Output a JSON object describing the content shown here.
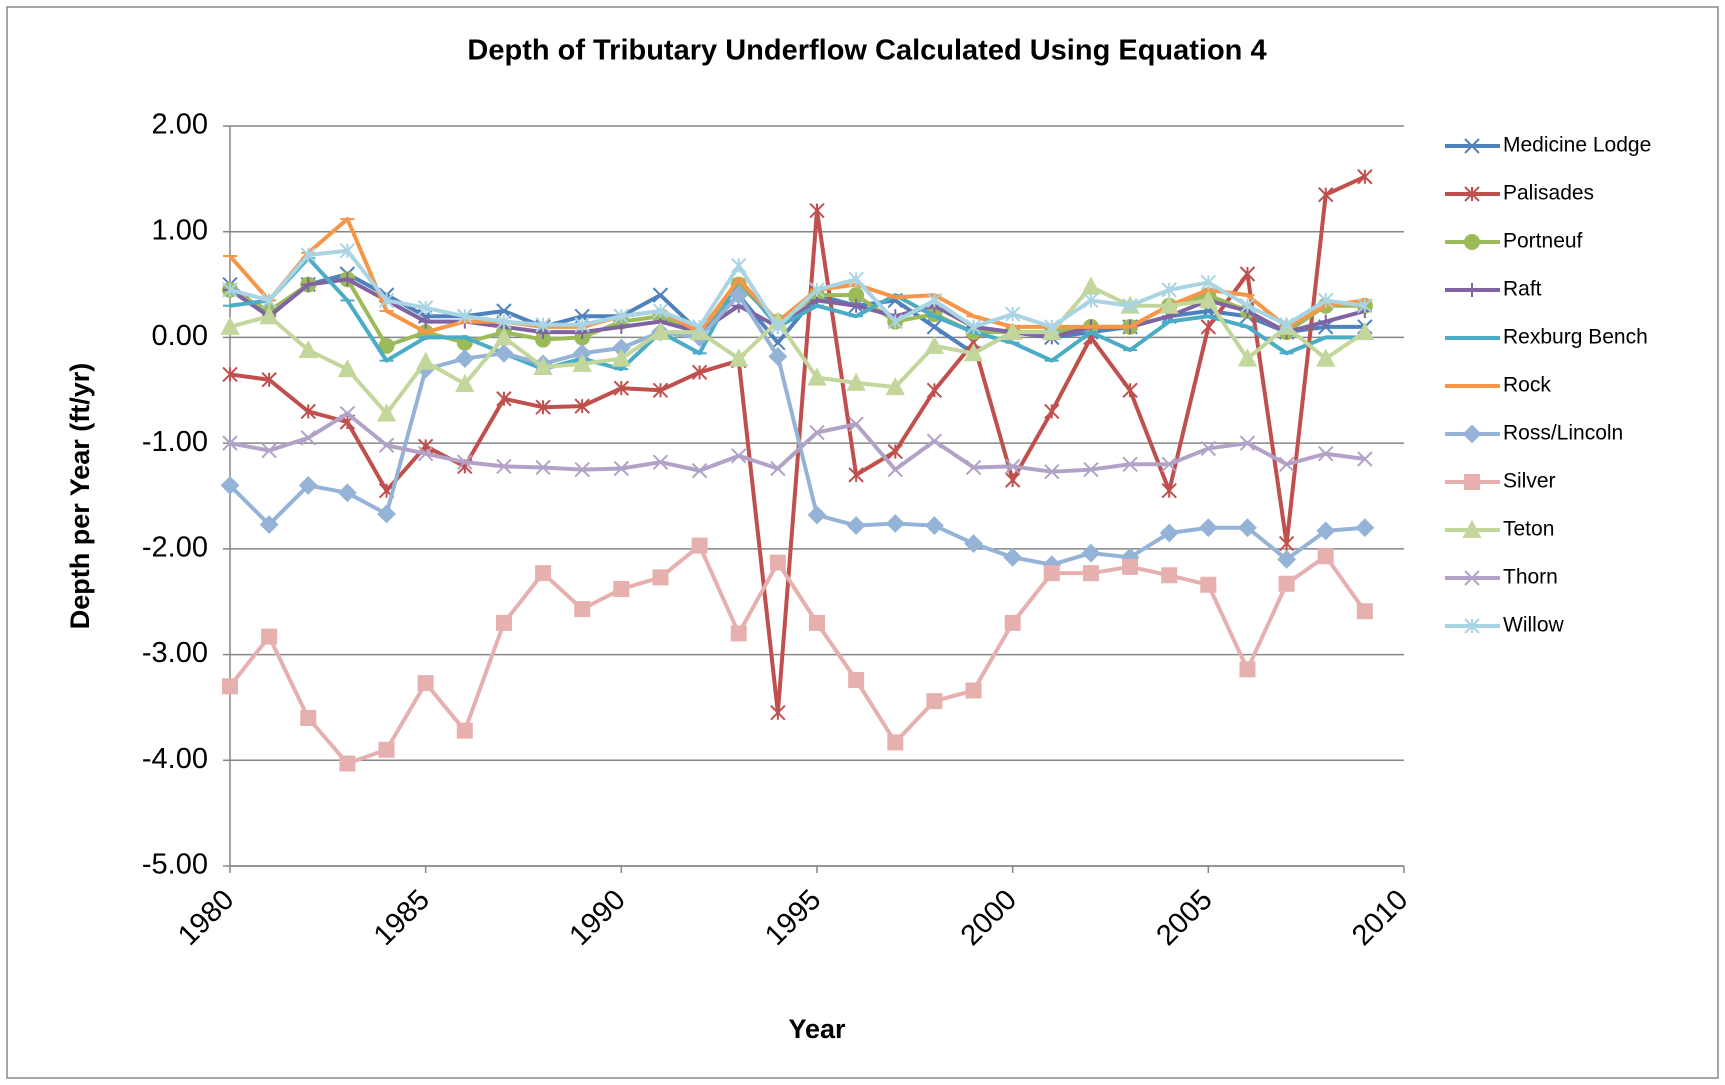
{
  "chart_data": {
    "type": "line",
    "title": "Depth of Tributary Underflow Calculated Using Equation 4",
    "x_label": "Year",
    "y_label": "Depth per Year (ft/yr)",
    "x": [
      1980,
      1981,
      1982,
      1983,
      1984,
      1985,
      1986,
      1987,
      1988,
      1989,
      1990,
      1991,
      1992,
      1993,
      1994,
      1995,
      1996,
      1997,
      1998,
      1999,
      2000,
      2001,
      2002,
      2003,
      2004,
      2005,
      2006,
      2007,
      2008,
      2009
    ],
    "xlim": [
      1980,
      2010
    ],
    "xticks": [
      1980,
      1985,
      1990,
      1995,
      2000,
      2005,
      2010
    ],
    "ylim": [
      -5,
      2
    ],
    "yticks": [
      {
        "value": 2,
        "label": "2.00"
      },
      {
        "value": 1,
        "label": "1.00"
      },
      {
        "value": 0,
        "label": "0.00"
      },
      {
        "value": -1,
        "label": "-1.00"
      },
      {
        "value": -2,
        "label": "-2.00"
      },
      {
        "value": -3,
        "label": "-3.00"
      },
      {
        "value": -4,
        "label": "-4.00"
      },
      {
        "value": -5,
        "label": "-5.00"
      }
    ],
    "grid": true,
    "legend": "right",
    "series": [
      {
        "name": "Medicine Lodge",
        "color": "#4f81bd",
        "marker": "x",
        "values": [
          0.5,
          0.2,
          0.5,
          0.6,
          0.4,
          0.2,
          0.2,
          0.25,
          0.1,
          0.2,
          0.2,
          0.4,
          0.05,
          0.4,
          -0.05,
          0.4,
          0.3,
          0.35,
          0.1,
          -0.15,
          0.05,
          0.0,
          0.05,
          0.1,
          0.2,
          0.25,
          0.2,
          0.05,
          0.1,
          0.1
        ]
      },
      {
        "name": "Palisades",
        "color": "#c0504d",
        "marker": "star",
        "values": [
          -0.35,
          -0.4,
          -0.7,
          -0.8,
          -1.45,
          -1.03,
          -1.22,
          -0.58,
          -0.66,
          -0.65,
          -0.48,
          -0.5,
          -0.33,
          -0.22,
          -3.55,
          1.2,
          -1.3,
          -1.08,
          -0.5,
          -0.05,
          -1.35,
          -0.7,
          0.0,
          -0.5,
          -1.45,
          0.1,
          0.6,
          -1.95,
          1.35,
          1.52
        ]
      },
      {
        "name": "Portneuf",
        "color": "#9bbb59",
        "marker": "circle",
        "values": [
          0.45,
          0.25,
          0.5,
          0.55,
          -0.08,
          0.05,
          -0.05,
          0.05,
          -0.02,
          0.0,
          0.15,
          0.2,
          0.05,
          0.5,
          0.15,
          0.4,
          0.4,
          0.15,
          0.22,
          0.05,
          0.05,
          0.05,
          0.1,
          0.1,
          0.3,
          0.4,
          0.25,
          0.05,
          0.3,
          0.3
        ]
      },
      {
        "name": "Raft",
        "color": "#8064a2",
        "marker": "plus",
        "values": [
          0.45,
          0.2,
          0.5,
          0.55,
          0.35,
          0.15,
          0.15,
          0.1,
          0.05,
          0.05,
          0.1,
          0.15,
          0.05,
          0.3,
          0.1,
          0.35,
          0.3,
          0.2,
          0.3,
          0.1,
          0.05,
          0.0,
          0.1,
          0.1,
          0.2,
          0.35,
          0.25,
          0.05,
          0.15,
          0.25
        ]
      },
      {
        "name": "Rexburg Bench",
        "color": "#4bacc6",
        "marker": "dash",
        "values": [
          0.3,
          0.35,
          0.75,
          0.35,
          -0.22,
          0.0,
          0.0,
          -0.15,
          -0.3,
          -0.2,
          -0.3,
          0.05,
          -0.15,
          0.55,
          0.1,
          0.3,
          0.2,
          0.4,
          0.2,
          0.05,
          -0.05,
          -0.22,
          0.05,
          -0.12,
          0.15,
          0.2,
          0.1,
          -0.15,
          0.0,
          0.0
        ]
      },
      {
        "name": "Rock",
        "color": "#f79646",
        "marker": "dash",
        "values": [
          0.77,
          0.35,
          0.8,
          1.12,
          0.25,
          0.05,
          0.15,
          0.15,
          0.1,
          0.1,
          0.2,
          0.25,
          0.05,
          0.55,
          0.15,
          0.45,
          0.5,
          0.38,
          0.4,
          0.2,
          0.1,
          0.1,
          0.1,
          0.1,
          0.3,
          0.45,
          0.4,
          0.1,
          0.3,
          0.35
        ]
      },
      {
        "name": "Ross/Lincoln",
        "color": "#95b3d7",
        "marker": "diamond",
        "values": [
          -1.4,
          -1.77,
          -1.4,
          -1.47,
          -1.67,
          -0.3,
          -0.2,
          -0.15,
          -0.25,
          -0.15,
          -0.1,
          0.05,
          0.0,
          0.4,
          -0.18,
          -1.68,
          -1.78,
          -1.76,
          -1.78,
          -1.95,
          -2.08,
          -2.15,
          -2.04,
          -2.08,
          -1.85,
          -1.8,
          -1.8,
          -2.1,
          -1.83,
          -1.8
        ]
      },
      {
        "name": "Silver",
        "color": "#e6b0af",
        "marker": "square",
        "values": [
          -3.3,
          -2.83,
          -3.6,
          -4.03,
          -3.9,
          -3.27,
          -3.72,
          -2.7,
          -2.23,
          -2.57,
          -2.38,
          -2.27,
          -1.97,
          -2.8,
          -2.13,
          -2.7,
          -3.24,
          -3.83,
          -3.44,
          -3.34,
          -2.7,
          -2.23,
          -2.23,
          -2.17,
          -2.25,
          -2.34,
          -3.14,
          -2.33,
          -2.07,
          -2.59
        ]
      },
      {
        "name": "Teton",
        "color": "#c3d69b",
        "marker": "triangle",
        "values": [
          0.1,
          0.2,
          -0.12,
          -0.3,
          -0.72,
          -0.23,
          -0.44,
          0.0,
          -0.28,
          -0.25,
          -0.2,
          0.05,
          0.05,
          -0.2,
          0.15,
          -0.38,
          -0.43,
          -0.47,
          -0.08,
          -0.15,
          0.05,
          0.05,
          0.48,
          0.3,
          0.3,
          0.35,
          -0.2,
          0.1,
          -0.2,
          0.05
        ]
      },
      {
        "name": "Thorn",
        "color": "#b3a2c7",
        "marker": "x",
        "values": [
          -1.0,
          -1.07,
          -0.95,
          -0.72,
          -1.02,
          -1.1,
          -1.18,
          -1.22,
          -1.23,
          -1.25,
          -1.24,
          -1.18,
          -1.26,
          -1.12,
          -1.24,
          -0.9,
          -0.82,
          -1.25,
          -0.98,
          -1.23,
          -1.22,
          -1.27,
          -1.25,
          -1.2,
          -1.2,
          -1.05,
          -1.0,
          -1.2,
          -1.1,
          -1.15
        ]
      },
      {
        "name": "Willow",
        "color": "#a9d4e3",
        "marker": "star",
        "values": [
          0.45,
          0.35,
          0.78,
          0.82,
          0.35,
          0.28,
          0.2,
          0.15,
          0.12,
          0.12,
          0.2,
          0.25,
          0.1,
          0.68,
          0.1,
          0.45,
          0.55,
          0.15,
          0.35,
          0.1,
          0.22,
          0.1,
          0.35,
          0.3,
          0.45,
          0.52,
          0.3,
          0.12,
          0.35,
          0.3
        ]
      }
    ]
  }
}
